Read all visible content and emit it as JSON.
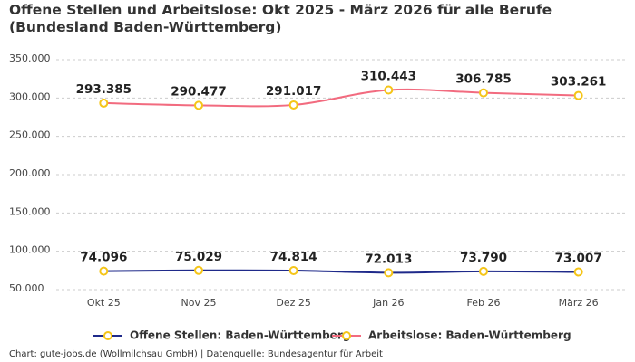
{
  "chart_data": {
    "type": "line",
    "title": "Offene Stellen und Arbeitslose: Okt 2025 - März 2026 für alle Berufe (Bundesland Baden-Württemberg)",
    "footer": "Chart: gute-jobs.de (Wollmilchsau GmbH) | Datenquelle: Bundesagentur für Arbeit",
    "categories": [
      "Okt 25",
      "Nov 25",
      "Dez 25",
      "Jan 26",
      "Feb 26",
      "März 26"
    ],
    "series": [
      {
        "name": "Offene Stellen: Baden-Württemberg",
        "color": "#1f2a8a",
        "marker_color": "#f5c518",
        "values": [
          74096,
          75029,
          74814,
          72013,
          73790,
          73007
        ],
        "value_labels": [
          "74.096",
          "75.029",
          "74.814",
          "72.013",
          "73.790",
          "73.007"
        ]
      },
      {
        "name": "Arbeitslose: Baden-Württemberg",
        "color": "#f26b7f",
        "marker_color": "#f5c518",
        "values": [
          293385,
          290477,
          291017,
          310443,
          306785,
          303261
        ],
        "value_labels": [
          "293.385",
          "290.477",
          "291.017",
          "310.443",
          "306.785",
          "303.261"
        ]
      }
    ],
    "ylim": [
      50000,
      350000
    ],
    "yticks": [
      {
        "value": 50000,
        "label": "50.000"
      },
      {
        "value": 100000,
        "label": "100.000"
      },
      {
        "value": 150000,
        "label": "150.000"
      },
      {
        "value": 200000,
        "label": "200.000"
      },
      {
        "value": 250000,
        "label": "250.000"
      },
      {
        "value": 300000,
        "label": "300.000"
      },
      {
        "value": 350000,
        "label": "350.000"
      }
    ],
    "grid": true,
    "legend": "bottom"
  }
}
